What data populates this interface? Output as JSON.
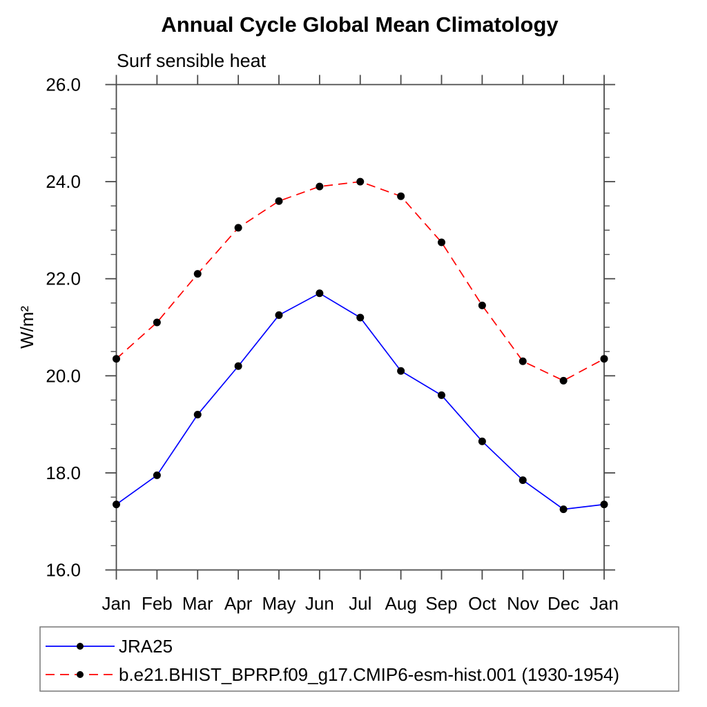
{
  "page": {
    "background": "#ffffff"
  },
  "chart_data": {
    "type": "line",
    "title": "Annual Cycle Global Mean Climatology",
    "subtitle": "Surf sensible heat",
    "xlabel": "",
    "ylabel": "W/m²",
    "x_tick_labels": [
      "Jan",
      "Feb",
      "Mar",
      "Apr",
      "May",
      "Jun",
      "Jul",
      "Aug",
      "Sep",
      "Oct",
      "Nov",
      "Dec",
      "Jan"
    ],
    "y_ticks": [
      16.0,
      18.0,
      20.0,
      22.0,
      24.0,
      26.0
    ],
    "y_tick_labels": [
      "16.0",
      "18.0",
      "20.0",
      "22.0",
      "24.0",
      "26.0"
    ],
    "y_minor_step": 0.5,
    "ylim": [
      16.0,
      26.0
    ],
    "grid": false,
    "legend_position": "bottom",
    "axis_color": "#4a4a4a",
    "marker_color": "#000000",
    "series": [
      {
        "name": "JRA25",
        "color": "#0000ff",
        "line_style": "solid",
        "marker": "circle",
        "values": [
          17.35,
          17.95,
          19.2,
          20.2,
          21.25,
          21.7,
          21.2,
          20.1,
          19.6,
          18.65,
          17.85,
          17.25,
          17.35
        ]
      },
      {
        "name": "b.e21.BHIST_BPRP.f09_g17.CMIP6-esm-hist.001 (1930-1954)",
        "color": "#ff0000",
        "line_style": "dashed",
        "marker": "circle",
        "values": [
          20.35,
          21.1,
          22.1,
          23.05,
          23.6,
          23.9,
          24.0,
          23.7,
          22.75,
          21.45,
          20.3,
          19.9,
          20.35
        ]
      }
    ]
  }
}
